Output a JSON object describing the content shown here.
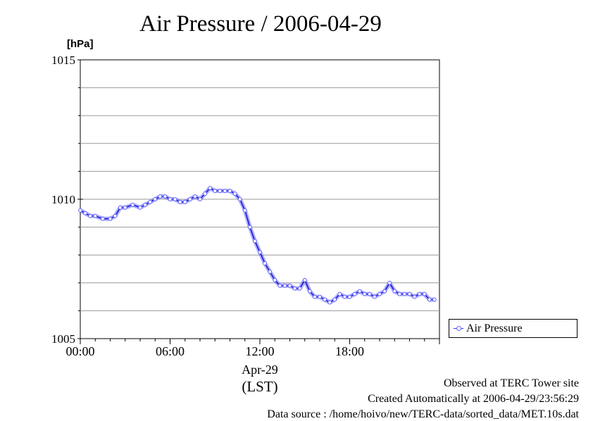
{
  "chart_data": {
    "type": "line",
    "title": "Air Pressure / 2006-04-29",
    "ylabel": "[hPa]",
    "xlabel": "(LST)",
    "x_date_label": "Apr-29",
    "ylim": [
      1005,
      1015
    ],
    "yticks": [
      "1005",
      "1010",
      "1015"
    ],
    "xlim": [
      "00:00",
      "24:00"
    ],
    "xticks": [
      "00:00",
      "06:00",
      "12:00",
      "18:00"
    ],
    "grid": true,
    "legend_position": "bottom-right, outside plot",
    "series": [
      {
        "name": "Air Pressure",
        "color": "#3333ff",
        "marker_color": "#6666ff",
        "x": [
          "00:00",
          "00:20",
          "00:40",
          "01:00",
          "01:30",
          "02:00",
          "02:20",
          "02:40",
          "03:00",
          "03:30",
          "04:00",
          "04:20",
          "04:40",
          "05:00",
          "05:20",
          "05:40",
          "06:00",
          "06:20",
          "06:40",
          "07:00",
          "07:20",
          "07:40",
          "08:00",
          "08:20",
          "08:40",
          "09:00",
          "09:20",
          "09:40",
          "10:00",
          "10:20",
          "10:40",
          "11:00",
          "11:20",
          "11:40",
          "12:00",
          "12:20",
          "12:40",
          "13:00",
          "13:20",
          "13:40",
          "14:00",
          "14:20",
          "14:40",
          "15:00",
          "15:20",
          "15:40",
          "16:00",
          "16:20",
          "16:40",
          "17:00",
          "17:20",
          "17:40",
          "18:00",
          "18:20",
          "18:40",
          "19:00",
          "19:20",
          "19:40",
          "20:00",
          "20:20",
          "20:40",
          "21:00",
          "21:20",
          "21:40",
          "22:00",
          "22:20",
          "22:40",
          "23:00",
          "23:20",
          "23:40"
        ],
        "values": [
          1009.6,
          1009.5,
          1009.4,
          1009.4,
          1009.3,
          1009.3,
          1009.4,
          1009.7,
          1009.7,
          1009.8,
          1009.7,
          1009.8,
          1009.9,
          1010.0,
          1010.1,
          1010.1,
          1010.0,
          1010.0,
          1009.9,
          1009.9,
          1010.0,
          1010.1,
          1010.0,
          1010.2,
          1010.4,
          1010.3,
          1010.3,
          1010.3,
          1010.3,
          1010.2,
          1010.0,
          1009.6,
          1009.0,
          1008.5,
          1008.1,
          1007.7,
          1007.4,
          1007.1,
          1006.9,
          1006.9,
          1006.9,
          1006.8,
          1006.8,
          1007.1,
          1006.7,
          1006.5,
          1006.5,
          1006.4,
          1006.3,
          1006.4,
          1006.6,
          1006.5,
          1006.5,
          1006.6,
          1006.7,
          1006.6,
          1006.6,
          1006.5,
          1006.6,
          1006.7,
          1007.0,
          1006.7,
          1006.6,
          1006.6,
          1006.6,
          1006.5,
          1006.6,
          1006.6,
          1006.4,
          1006.4
        ]
      }
    ]
  },
  "footer": {
    "site": "Observed at TERC Tower site",
    "created": "Created Automatically at 2006-04-29/23:56:29",
    "source": "Data source : /home/hoivo/new/TERC-data/sorted_data/MET.10s.dat"
  }
}
